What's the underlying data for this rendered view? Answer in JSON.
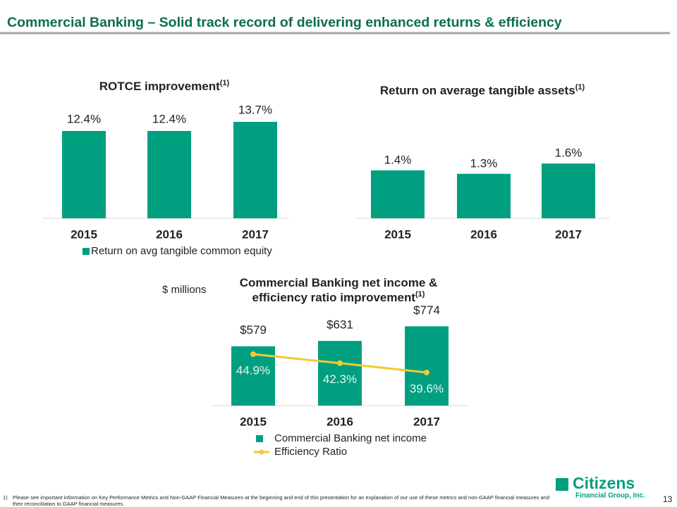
{
  "title": "Commercial Banking – Solid track record of delivering enhanced returns & efficiency",
  "unit_label": "$ millions",
  "chart_data": [
    {
      "type": "bar",
      "title": "ROTCE improvement",
      "title_note": "(1)",
      "legend": true,
      "categories": [
        "2015",
        "2016",
        "2017"
      ],
      "series": [
        {
          "name": "Return on avg tangible common equity",
          "color": "#009f7f",
          "values": [
            12.4,
            12.4,
            13.7
          ],
          "value_labels": [
            "12.4%",
            "12.4%",
            "13.7%"
          ]
        }
      ]
    },
    {
      "type": "bar",
      "title": "Return on average tangible assets",
      "title_note": "(1)",
      "legend": false,
      "categories": [
        "2015",
        "2016",
        "2017"
      ],
      "series": [
        {
          "name": "Return on average tangible assets",
          "color": "#009f7f",
          "values": [
            1.4,
            1.3,
            1.6
          ],
          "value_labels": [
            "1.4%",
            "1.3%",
            "1.6%"
          ]
        }
      ]
    },
    {
      "type": "bar",
      "title_lines": [
        "Commercial Banking net income &",
        "efficiency ratio improvement"
      ],
      "title_note": "(1)",
      "legend": true,
      "categories": [
        "2015",
        "2016",
        "2017"
      ],
      "series": [
        {
          "name": "Commercial  Banking net income",
          "color": "#009f7f",
          "values": [
            579,
            631,
            774
          ],
          "value_labels": [
            "$579",
            "$631",
            "$774"
          ]
        },
        {
          "name": "Efficiency Ratio",
          "type": "line",
          "axis": "y2",
          "color": "#f2c933",
          "values": [
            44.9,
            42.3,
            39.6
          ],
          "value_labels": [
            "44.9%",
            "42.3%",
            "39.6%"
          ]
        }
      ]
    }
  ],
  "footnote": {
    "marker": "1)",
    "lines": [
      "Please see important information on Key Performance Metrics and Non-GAAP Financial Measures at the beginning and end of this presentation for an explanation of our use of these metrics and non-GAAP financial measures and",
      "their reconciliation to GAAP financial measures."
    ]
  },
  "logo": {
    "name": "Citizens",
    "subtitle": "Financial Group, Inc."
  },
  "page_number": "13"
}
